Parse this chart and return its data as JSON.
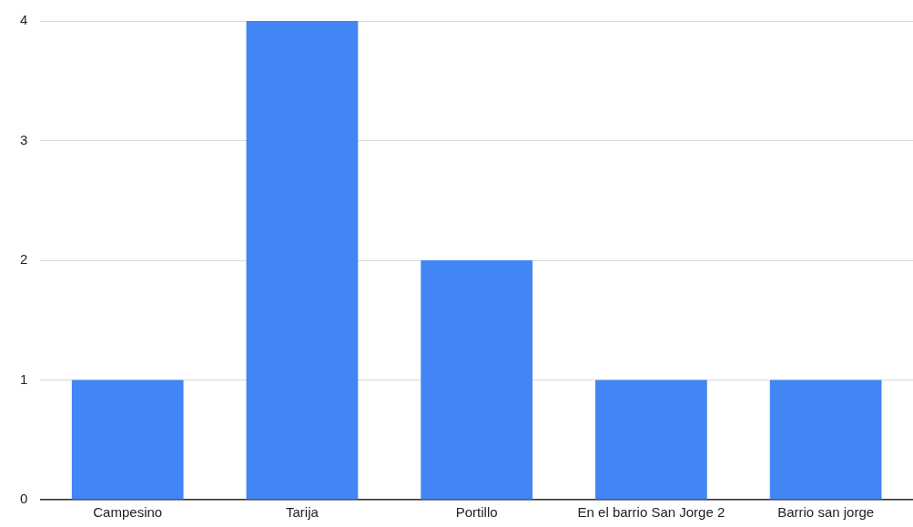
{
  "chart_data": {
    "type": "bar",
    "categories": [
      "Campesino",
      "Tarija",
      "Portillo",
      "En el barrio San Jorge 2",
      "Barrio san jorge"
    ],
    "values": [
      1,
      4,
      2,
      1,
      1
    ],
    "color": "#4285f4",
    "ylim": [
      0,
      4
    ],
    "yticks": [
      0,
      1,
      2,
      3,
      4
    ],
    "grid": "y"
  }
}
